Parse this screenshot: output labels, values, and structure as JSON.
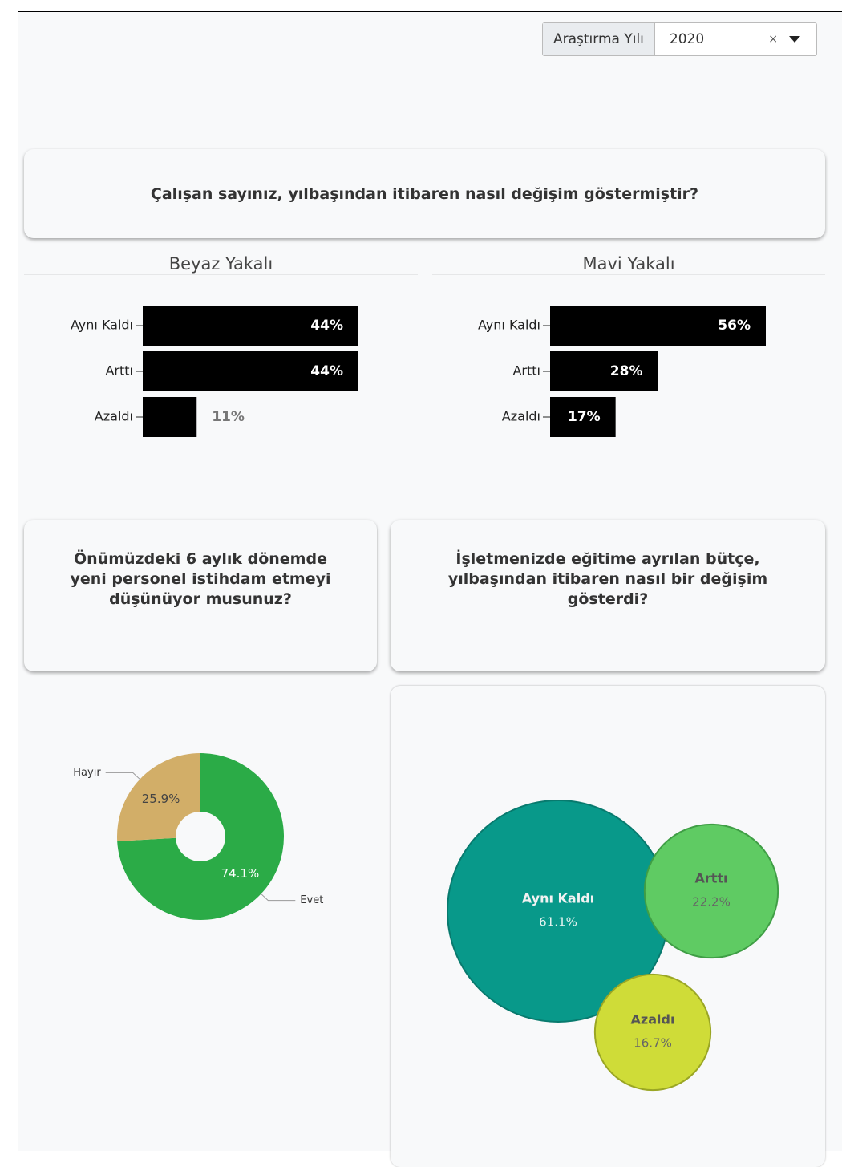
{
  "filter": {
    "label": "Araştırma Yılı",
    "value": "2020",
    "clear": "×"
  },
  "questions": [
    "Çalışan sayınız, yılbaşından itibaren nasıl değişim göstermiştir?",
    "Önümüzdeki 6 aylık dönemde yeni personel istihdam etmeyi düşünüyor musunuz?",
    "İşletmenizde eğitime ayrılan bütçe, yılbaşından itibaren nasıl bir değişim gösterdi?"
  ],
  "chart_data": [
    {
      "type": "bar",
      "title": "Beyaz Yakalı",
      "categories": [
        "Aynı Kaldı",
        "Arttı",
        "Azaldı"
      ],
      "values": [
        44,
        44,
        11
      ],
      "value_labels": [
        "44%",
        "44%",
        "11%"
      ],
      "color": "#000000",
      "xlim": [
        0,
        44
      ]
    },
    {
      "type": "bar",
      "title": "Mavi Yakalı",
      "categories": [
        "Aynı Kaldı",
        "Arttı",
        "Azaldı"
      ],
      "values": [
        56,
        28,
        17
      ],
      "value_labels": [
        "56%",
        "28%",
        "17%"
      ],
      "color": "#000000",
      "xlim": [
        0,
        56
      ]
    },
    {
      "type": "pie",
      "categories": [
        "Evet",
        "Hayır"
      ],
      "values": [
        74.1,
        25.9
      ],
      "value_labels": [
        "74.1%",
        "25.9%"
      ],
      "colors": [
        "#2bab47",
        "#d2ae68"
      ]
    },
    {
      "type": "bubble",
      "categories": [
        "Aynı Kaldı",
        "Arttı",
        "Azaldı"
      ],
      "values": [
        61.1,
        22.2,
        16.7
      ],
      "value_labels": [
        "61.1%",
        "22.2%",
        "16.7%"
      ],
      "colors": [
        "#08998a",
        "#5fcb63",
        "#cfdc38"
      ]
    }
  ]
}
